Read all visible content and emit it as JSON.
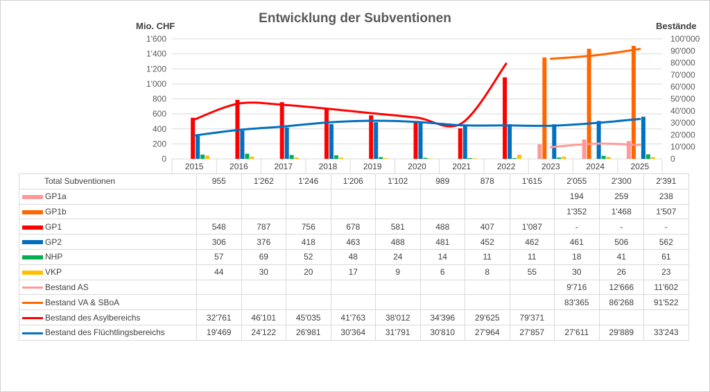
{
  "chart_data": {
    "type": "bar",
    "title": "Entwicklung der Subventionen",
    "ylabel": "Mio. CHF",
    "y2label": "Bestände",
    "ylim": [
      0,
      1600
    ],
    "y2lim": [
      0,
      100000
    ],
    "yticks": [
      "0",
      "200",
      "400",
      "600",
      "800",
      "1'000",
      "1'200",
      "1'400",
      "1'600"
    ],
    "y2ticks": [
      "0",
      "10'000",
      "20'000",
      "30'000",
      "40'000",
      "50'000",
      "60'000",
      "70'000",
      "80'000",
      "90'000",
      "100'000"
    ],
    "categories": [
      "2015",
      "2016",
      "2017",
      "2018",
      "2019",
      "2020",
      "2021",
      "2022",
      "2023",
      "2024",
      "2025"
    ],
    "total_label": "Total Subventionen",
    "total": [
      "955",
      "1'262",
      "1'246",
      "1'206",
      "1'102",
      "989",
      "878",
      "1'615",
      "2'055",
      "2'300",
      "2'391"
    ],
    "bar_series": [
      {
        "name": "GP1a",
        "color": "#ff9999",
        "values": [
          null,
          null,
          null,
          null,
          null,
          null,
          null,
          null,
          194,
          259,
          238
        ],
        "display": [
          "",
          "",
          "",
          "",
          "",
          "",
          "",
          "",
          "194",
          "259",
          "238"
        ]
      },
      {
        "name": "GP1b",
        "color": "#ff6600",
        "values": [
          null,
          null,
          null,
          null,
          null,
          null,
          null,
          null,
          1352,
          1468,
          1507
        ],
        "display": [
          "",
          "",
          "",
          "",
          "",
          "",
          "",
          "",
          "1'352",
          "1'468",
          "1'507"
        ]
      },
      {
        "name": "GP1",
        "color": "#ff0000",
        "values": [
          548,
          787,
          756,
          678,
          581,
          488,
          407,
          1087,
          null,
          null,
          null
        ],
        "display": [
          "548",
          "787",
          "756",
          "678",
          "581",
          "488",
          "407",
          "1'087",
          "-",
          "-",
          "-"
        ]
      },
      {
        "name": "GP2",
        "color": "#0070c0",
        "values": [
          306,
          376,
          418,
          463,
          488,
          481,
          452,
          462,
          461,
          506,
          562
        ],
        "display": [
          "306",
          "376",
          "418",
          "463",
          "488",
          "481",
          "452",
          "462",
          "461",
          "506",
          "562"
        ]
      },
      {
        "name": "NHP",
        "color": "#00b050",
        "values": [
          57,
          69,
          52,
          48,
          24,
          14,
          11,
          11,
          18,
          41,
          61
        ],
        "display": [
          "57",
          "69",
          "52",
          "48",
          "24",
          "14",
          "11",
          "11",
          "18",
          "41",
          "61"
        ]
      },
      {
        "name": "VKP",
        "color": "#ffc000",
        "values": [
          44,
          30,
          20,
          17,
          9,
          6,
          8,
          55,
          30,
          26,
          23
        ],
        "display": [
          "44",
          "30",
          "20",
          "17",
          "9",
          "6",
          "8",
          "55",
          "30",
          "26",
          "23"
        ]
      }
    ],
    "line_series": [
      {
        "name": "Bestand AS",
        "color": "#ff9999",
        "values": [
          null,
          null,
          null,
          null,
          null,
          null,
          null,
          null,
          9716,
          12666,
          11602
        ],
        "display": [
          "",
          "",
          "",
          "",
          "",
          "",
          "",
          "",
          "9'716",
          "12'666",
          "11'602"
        ]
      },
      {
        "name": "Bestand VA & SBoA",
        "color": "#ff6600",
        "values": [
          null,
          null,
          null,
          null,
          null,
          null,
          null,
          null,
          83365,
          86268,
          91522
        ],
        "display": [
          "",
          "",
          "",
          "",
          "",
          "",
          "",
          "",
          "83'365",
          "86'268",
          "91'522"
        ]
      },
      {
        "name": "Bestand des Asylbereichs",
        "color": "#ff0000",
        "values": [
          32761,
          46101,
          45035,
          41763,
          38012,
          34396,
          29625,
          79371,
          null,
          null,
          null
        ],
        "display": [
          "32'761",
          "46'101",
          "45'035",
          "41'763",
          "38'012",
          "34'396",
          "29'625",
          "79'371",
          "",
          "",
          ""
        ]
      },
      {
        "name": "Bestand des Flüchtlingsbereichs",
        "color": "#0070c0",
        "values": [
          19469,
          24122,
          26981,
          30364,
          31791,
          30810,
          27964,
          27857,
          27611,
          29889,
          33243
        ],
        "display": [
          "19'469",
          "24'122",
          "26'981",
          "30'364",
          "31'791",
          "30'810",
          "27'964",
          "27'857",
          "27'611",
          "29'889",
          "33'243"
        ]
      }
    ],
    "grid": true,
    "legend": "data-table"
  }
}
